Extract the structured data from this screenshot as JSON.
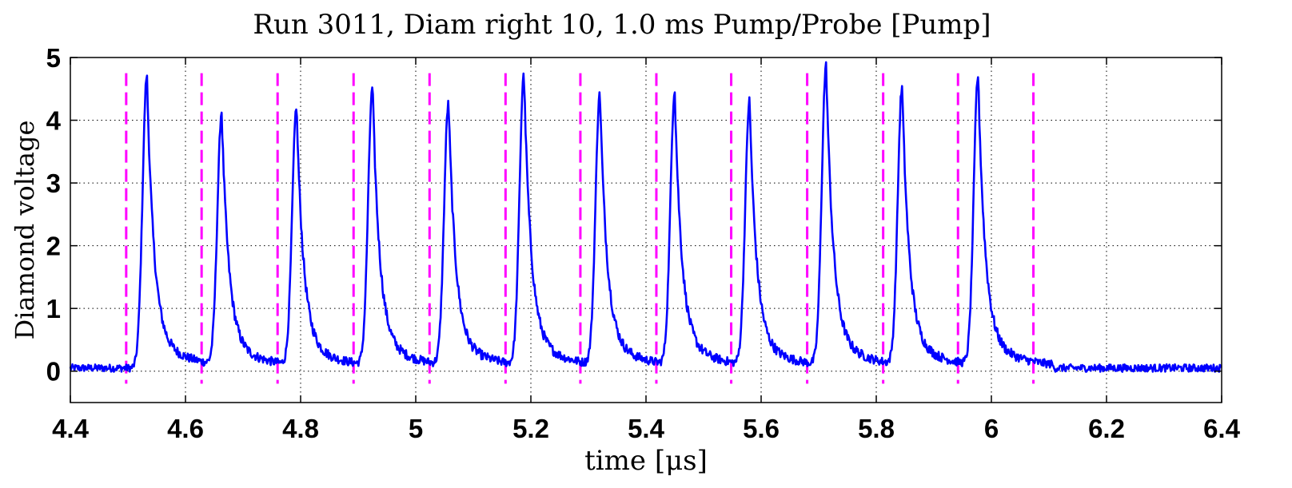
{
  "chart_data": {
    "type": "line",
    "title": "Run 3011, Diam right 10, 1.0 ms Pump/Probe [Pump]",
    "xlabel": "time [μs]",
    "ylabel": "Diamond voltage",
    "xlim": [
      4.4,
      6.4
    ],
    "ylim": [
      -0.5,
      5
    ],
    "xticks": [
      4.4,
      4.6,
      4.8,
      5,
      5.2,
      5.4,
      5.6,
      5.8,
      6,
      6.2,
      6.4
    ],
    "xtick_labels": [
      "4.4",
      "4.6",
      "4.8",
      "5",
      "5.2",
      "5.4",
      "5.6",
      "5.8",
      "6",
      "6.2",
      "6.4"
    ],
    "yticks": [
      0,
      1,
      2,
      3,
      4,
      5
    ],
    "ytick_labels": [
      "0",
      "1",
      "2",
      "3",
      "4",
      "5"
    ],
    "grid": true,
    "series": [
      {
        "style": "solid",
        "color": "#0000ff",
        "baseline": 0.05,
        "noise": 0.06,
        "peaks": [
          {
            "t": 4.533,
            "v": 4.67
          },
          {
            "t": 4.663,
            "v": 4.03
          },
          {
            "t": 4.793,
            "v": 4.13
          },
          {
            "t": 4.925,
            "v": 4.48
          },
          {
            "t": 5.057,
            "v": 4.23
          },
          {
            "t": 5.188,
            "v": 4.68
          },
          {
            "t": 5.32,
            "v": 4.38
          },
          {
            "t": 5.45,
            "v": 4.38
          },
          {
            "t": 5.58,
            "v": 4.22
          },
          {
            "t": 5.713,
            "v": 4.83
          },
          {
            "t": 5.845,
            "v": 4.47
          },
          {
            "t": 5.977,
            "v": 4.66
          }
        ]
      },
      {
        "style": "dashed",
        "color": "#ff00ff",
        "vlines": [
          4.497,
          4.628,
          4.76,
          4.892,
          5.024,
          5.156,
          5.286,
          5.418,
          5.548,
          5.68,
          5.812,
          5.942,
          6.073
        ]
      }
    ]
  }
}
